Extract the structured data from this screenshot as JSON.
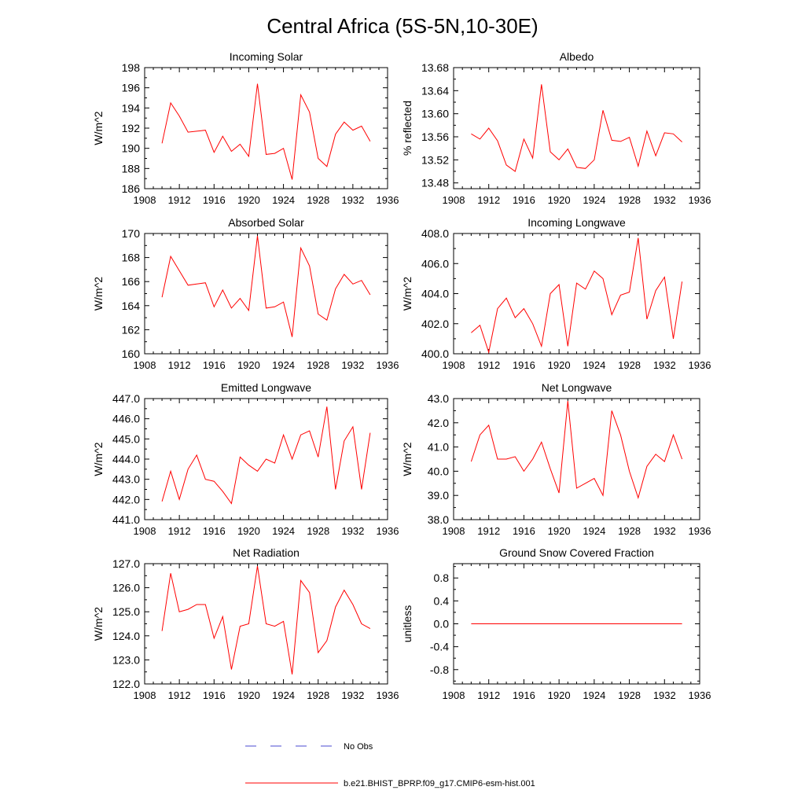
{
  "figure": {
    "title": "Central Africa (5S-5N,10-30E)",
    "line_color": "#ff0000",
    "obs_color": "#4a4ad0",
    "legend": [
      {
        "label": "No Obs",
        "style": "dashed",
        "color": "#4a4ad0"
      },
      {
        "label": "b.e21.BHIST_BPRP.f09_g17.CMIP6-esm-hist.001",
        "style": "solid",
        "color": "#ff0000"
      }
    ]
  },
  "chart_data": [
    {
      "type": "line",
      "title": "Incoming Solar",
      "ylabel": "W/m^2",
      "xlim": [
        1908,
        1936
      ],
      "xticks": [
        1908,
        1912,
        1916,
        1920,
        1924,
        1928,
        1932,
        1936
      ],
      "ylim": [
        186,
        198
      ],
      "yticks": [
        186,
        188,
        190,
        192,
        194,
        196,
        198
      ],
      "ytick_labels": [
        "186",
        "188",
        "190",
        "192",
        "194",
        "196",
        "198"
      ],
      "yminor": [
        187,
        189,
        191,
        193,
        195,
        197
      ],
      "x": [
        1910,
        1911,
        1912,
        1913,
        1914,
        1915,
        1916,
        1917,
        1918,
        1919,
        1920,
        1921,
        1922,
        1923,
        1924,
        1925,
        1926,
        1927,
        1928,
        1929,
        1930,
        1931,
        1932,
        1933,
        1934
      ],
      "series": [
        {
          "values": [
            190.5,
            194.5,
            193.2,
            191.6,
            191.7,
            191.8,
            189.6,
            191.2,
            189.7,
            190.4,
            189.2,
            196.4,
            189.4,
            189.5,
            190.0,
            186.9,
            195.3,
            193.6,
            189.0,
            188.2,
            191.4,
            192.6,
            191.8,
            192.2,
            190.7
          ]
        }
      ]
    },
    {
      "type": "line",
      "title": "Albedo",
      "ylabel": "% reflected",
      "xlim": [
        1908,
        1936
      ],
      "xticks": [
        1908,
        1912,
        1916,
        1920,
        1924,
        1928,
        1932,
        1936
      ],
      "ylim": [
        13.47,
        13.68
      ],
      "yticks": [
        13.48,
        13.52,
        13.56,
        13.6,
        13.64,
        13.68
      ],
      "ytick_labels": [
        "13.48",
        "13.52",
        "13.56",
        "13.60",
        "13.64",
        "13.68"
      ],
      "yminor": [
        13.5,
        13.54,
        13.58,
        13.62,
        13.66
      ],
      "x": [
        1910,
        1911,
        1912,
        1913,
        1914,
        1915,
        1916,
        1917,
        1918,
        1919,
        1920,
        1921,
        1922,
        1923,
        1924,
        1925,
        1926,
        1927,
        1928,
        1929,
        1930,
        1931,
        1932,
        1933,
        1934
      ],
      "series": [
        {
          "values": [
            13.565,
            13.556,
            13.575,
            13.553,
            13.511,
            13.5,
            13.556,
            13.523,
            13.651,
            13.534,
            13.52,
            13.539,
            13.507,
            13.505,
            13.52,
            13.606,
            13.554,
            13.552,
            13.559,
            13.509,
            13.57,
            13.527,
            13.567,
            13.565,
            13.551
          ]
        }
      ]
    },
    {
      "type": "line",
      "title": "Absorbed Solar",
      "ylabel": "W/m^2",
      "xlim": [
        1908,
        1936
      ],
      "xticks": [
        1908,
        1912,
        1916,
        1920,
        1924,
        1928,
        1932,
        1936
      ],
      "ylim": [
        160,
        170
      ],
      "yticks": [
        160,
        162,
        164,
        166,
        168,
        170
      ],
      "ytick_labels": [
        "160",
        "162",
        "164",
        "166",
        "168",
        "170"
      ],
      "yminor": [
        161,
        163,
        165,
        167,
        169
      ],
      "x": [
        1910,
        1911,
        1912,
        1913,
        1914,
        1915,
        1916,
        1917,
        1918,
        1919,
        1920,
        1921,
        1922,
        1923,
        1924,
        1925,
        1926,
        1927,
        1928,
        1929,
        1930,
        1931,
        1932,
        1933,
        1934
      ],
      "series": [
        {
          "values": [
            164.7,
            168.1,
            166.9,
            165.7,
            165.8,
            165.9,
            163.9,
            165.3,
            163.8,
            164.6,
            163.6,
            169.8,
            163.8,
            163.9,
            164.3,
            161.4,
            168.8,
            167.3,
            163.3,
            162.8,
            165.4,
            166.6,
            165.8,
            166.1,
            164.9
          ]
        }
      ]
    },
    {
      "type": "line",
      "title": "Incoming Longwave",
      "ylabel": "W/m^2",
      "xlim": [
        1908,
        1936
      ],
      "xticks": [
        1908,
        1912,
        1916,
        1920,
        1924,
        1928,
        1932,
        1936
      ],
      "ylim": [
        400,
        408
      ],
      "yticks": [
        400,
        402,
        404,
        406,
        408
      ],
      "ytick_labels": [
        "400.0",
        "402.0",
        "404.0",
        "406.0",
        "408.0"
      ],
      "yminor": [
        401,
        403,
        405,
        407
      ],
      "x": [
        1910,
        1911,
        1912,
        1913,
        1914,
        1915,
        1916,
        1917,
        1918,
        1919,
        1920,
        1921,
        1922,
        1923,
        1924,
        1925,
        1926,
        1927,
        1928,
        1929,
        1930,
        1931,
        1932,
        1933,
        1934
      ],
      "series": [
        {
          "values": [
            401.4,
            401.9,
            400.1,
            403.0,
            403.7,
            402.4,
            403.0,
            402.0,
            400.5,
            404.0,
            404.6,
            400.5,
            404.7,
            404.3,
            405.5,
            405.0,
            402.6,
            403.9,
            404.1,
            407.7,
            402.3,
            404.2,
            405.1,
            401.0,
            404.8
          ]
        }
      ]
    },
    {
      "type": "line",
      "title": "Emitted Longwave",
      "ylabel": "W/m^2",
      "xlim": [
        1908,
        1936
      ],
      "xticks": [
        1908,
        1912,
        1916,
        1920,
        1924,
        1928,
        1932,
        1936
      ],
      "ylim": [
        441,
        447
      ],
      "yticks": [
        441,
        442,
        443,
        444,
        445,
        446,
        447
      ],
      "ytick_labels": [
        "441.0",
        "442.0",
        "443.0",
        "444.0",
        "445.0",
        "446.0",
        "447.0"
      ],
      "yminor": [
        441.5,
        442.5,
        443.5,
        444.5,
        445.5,
        446.5
      ],
      "x": [
        1910,
        1911,
        1912,
        1913,
        1914,
        1915,
        1916,
        1917,
        1918,
        1919,
        1920,
        1921,
        1922,
        1923,
        1924,
        1925,
        1926,
        1927,
        1928,
        1929,
        1930,
        1931,
        1932,
        1933,
        1934
      ],
      "series": [
        {
          "values": [
            441.9,
            443.4,
            442.0,
            443.5,
            444.2,
            443.0,
            442.9,
            442.4,
            441.8,
            444.1,
            443.7,
            443.4,
            444.0,
            443.8,
            445.2,
            444.0,
            445.2,
            445.4,
            444.1,
            446.6,
            442.5,
            444.9,
            445.6,
            442.5,
            445.3
          ]
        }
      ]
    },
    {
      "type": "line",
      "title": "Net Longwave",
      "ylabel": "W/m^2",
      "xlim": [
        1908,
        1936
      ],
      "xticks": [
        1908,
        1912,
        1916,
        1920,
        1924,
        1928,
        1932,
        1936
      ],
      "ylim": [
        38,
        43
      ],
      "yticks": [
        38,
        39,
        40,
        41,
        42,
        43
      ],
      "ytick_labels": [
        "38.0",
        "39.0",
        "40.0",
        "41.0",
        "42.0",
        "43.0"
      ],
      "yminor": [
        38.5,
        39.5,
        40.5,
        41.5,
        42.5
      ],
      "x": [
        1910,
        1911,
        1912,
        1913,
        1914,
        1915,
        1916,
        1917,
        1918,
        1919,
        1920,
        1921,
        1922,
        1923,
        1924,
        1925,
        1926,
        1927,
        1928,
        1929,
        1930,
        1931,
        1932,
        1933,
        1934
      ],
      "series": [
        {
          "values": [
            40.4,
            41.5,
            41.9,
            40.5,
            40.5,
            40.6,
            40.0,
            40.5,
            41.2,
            40.1,
            39.1,
            42.9,
            39.3,
            39.5,
            39.7,
            39.0,
            42.5,
            41.5,
            40.0,
            38.9,
            40.2,
            40.7,
            40.4,
            41.5,
            40.5
          ]
        }
      ]
    },
    {
      "type": "line",
      "title": "Net Radiation",
      "ylabel": "W/m^2",
      "xlim": [
        1908,
        1936
      ],
      "xticks": [
        1908,
        1912,
        1916,
        1920,
        1924,
        1928,
        1932,
        1936
      ],
      "ylim": [
        122,
        127
      ],
      "yticks": [
        122,
        123,
        124,
        125,
        126,
        127
      ],
      "ytick_labels": [
        "122.0",
        "123.0",
        "124.0",
        "125.0",
        "126.0",
        "127.0"
      ],
      "yminor": [
        122.5,
        123.5,
        124.5,
        125.5,
        126.5
      ],
      "x": [
        1910,
        1911,
        1912,
        1913,
        1914,
        1915,
        1916,
        1917,
        1918,
        1919,
        1920,
        1921,
        1922,
        1923,
        1924,
        1925,
        1926,
        1927,
        1928,
        1929,
        1930,
        1931,
        1932,
        1933,
        1934
      ],
      "series": [
        {
          "values": [
            124.2,
            126.6,
            125.0,
            125.1,
            125.3,
            125.3,
            123.9,
            124.8,
            122.6,
            124.4,
            124.5,
            126.9,
            124.5,
            124.4,
            124.6,
            122.4,
            126.3,
            125.8,
            123.3,
            123.8,
            125.2,
            125.9,
            125.3,
            124.5,
            124.3
          ]
        }
      ]
    },
    {
      "type": "line",
      "title": "Ground Snow Covered Fraction",
      "ylabel": "unitless",
      "xlim": [
        1908,
        1936
      ],
      "xticks": [
        1908,
        1912,
        1916,
        1920,
        1924,
        1928,
        1932,
        1936
      ],
      "ylim": [
        -1.05,
        1.05
      ],
      "yticks": [
        -0.8,
        -0.4,
        0.0,
        0.4,
        0.8
      ],
      "ytick_labels": [
        "-0.8",
        "-0.4",
        "0.0",
        "0.4",
        "0.8"
      ],
      "yminor": [
        -1.0,
        -0.6,
        -0.2,
        0.2,
        0.6,
        1.0
      ],
      "x": [
        1910,
        1911,
        1912,
        1913,
        1914,
        1915,
        1916,
        1917,
        1918,
        1919,
        1920,
        1921,
        1922,
        1923,
        1924,
        1925,
        1926,
        1927,
        1928,
        1929,
        1930,
        1931,
        1932,
        1933,
        1934
      ],
      "series": [
        {
          "values": [
            0,
            0,
            0,
            0,
            0,
            0,
            0,
            0,
            0,
            0,
            0,
            0,
            0,
            0,
            0,
            0,
            0,
            0,
            0,
            0,
            0,
            0,
            0,
            0,
            0
          ]
        }
      ]
    }
  ]
}
